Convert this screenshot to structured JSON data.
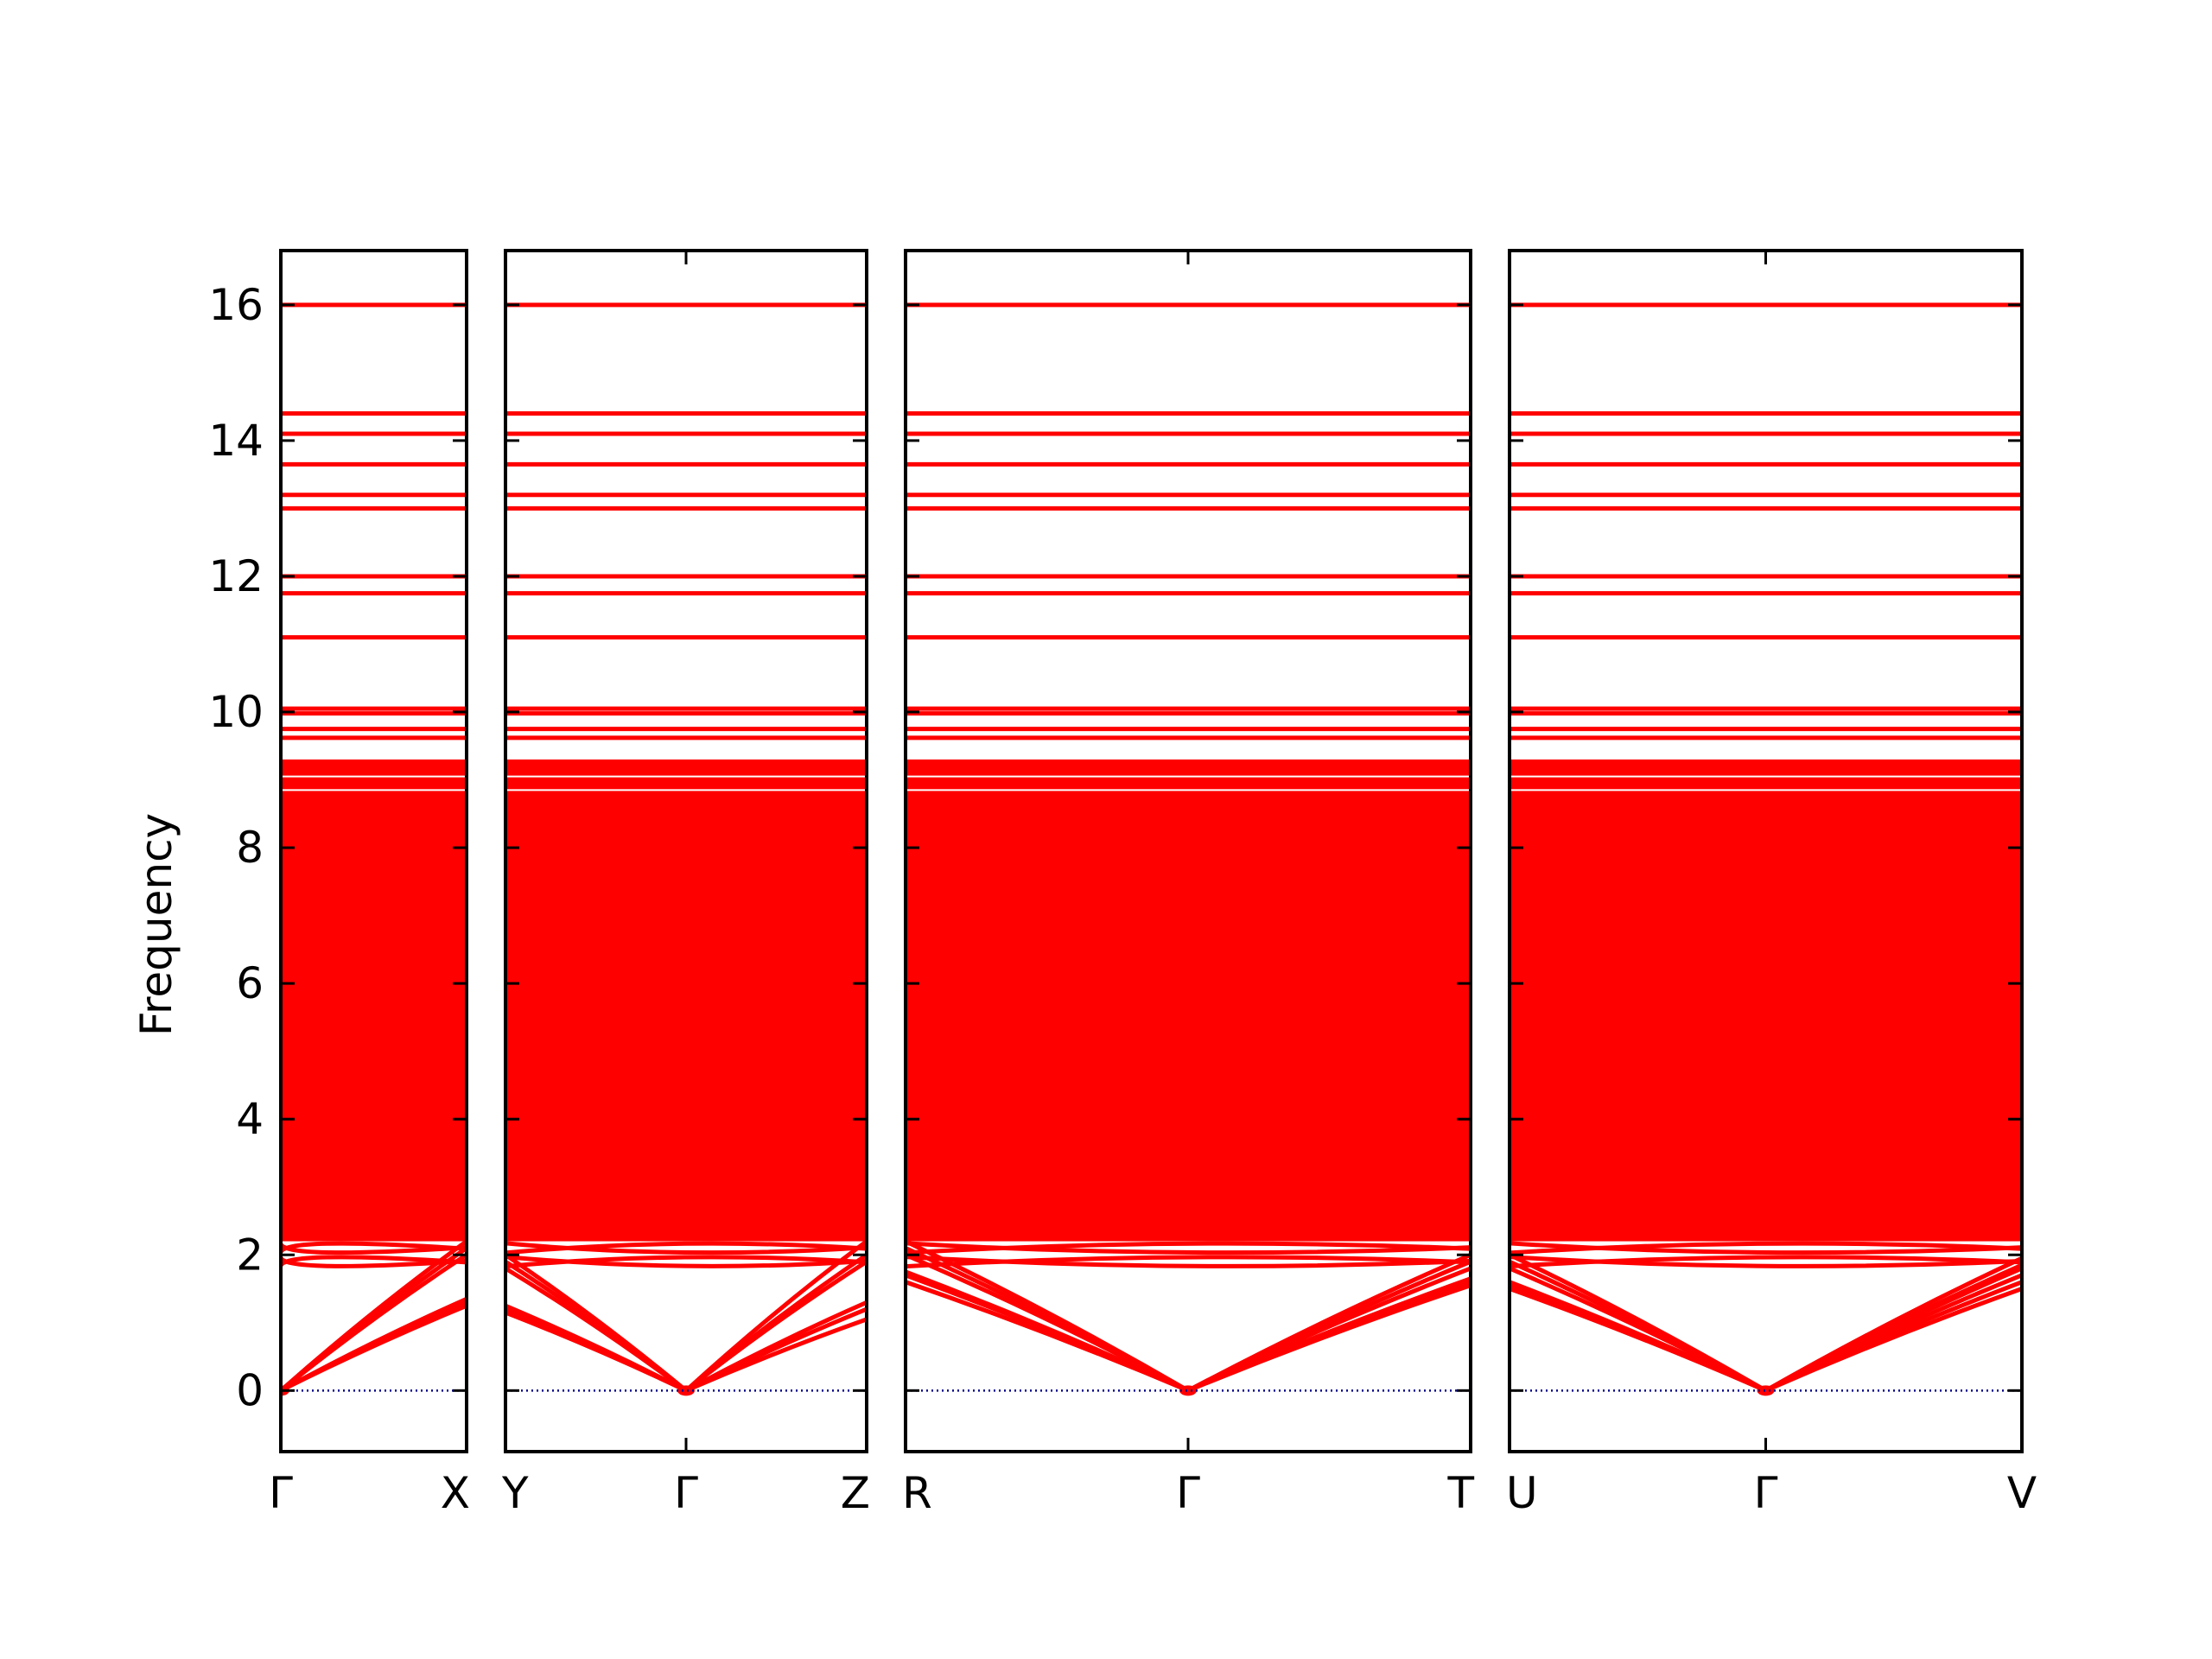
{
  "chart_data": {
    "type": "line",
    "title": "",
    "ylabel": "Frequency",
    "ylim": [
      -0.9,
      16.8
    ],
    "yticks": [
      0,
      2,
      4,
      6,
      8,
      10,
      12,
      14,
      16
    ],
    "ytick_labels": [
      "0",
      "2",
      "4",
      "6",
      "8",
      "10",
      "12",
      "14",
      "16"
    ],
    "zero_line": {
      "y": 0,
      "color": "#00008b",
      "style": "dotted"
    },
    "band_color": "#ff0000",
    "panels": [
      {
        "labels": [
          "Γ",
          "X"
        ],
        "gamma_index": 0,
        "acoustic_end": [
          1.25,
          1.3,
          1.35,
          2.0,
          2.1,
          2.2
        ]
      },
      {
        "labels": [
          "Y",
          "Γ",
          "Z"
        ],
        "gamma_index": 1,
        "acoustic_left": [
          1.15,
          1.2,
          1.25,
          1.8,
          1.9,
          2.0
        ],
        "acoustic_right": [
          1.05,
          1.2,
          1.3,
          1.9,
          2.0,
          2.2
        ]
      },
      {
        "labels": [
          "R",
          "Γ",
          "T"
        ],
        "gamma_index": 1,
        "acoustic_left": [
          1.6,
          1.7,
          1.75,
          2.0,
          2.1,
          2.2
        ],
        "acoustic_right": [
          1.55,
          1.6,
          1.65,
          1.8,
          1.9,
          2.0
        ]
      },
      {
        "labels": [
          "U",
          "Γ",
          "V"
        ],
        "gamma_index": 1,
        "acoustic_left": [
          1.5,
          1.55,
          1.6,
          1.8,
          1.9,
          2.0
        ],
        "acoustic_right": [
          1.5,
          1.6,
          1.7,
          1.8,
          1.85,
          1.95
        ]
      }
    ],
    "flat_bands": [
      16.0,
      14.4,
      14.1,
      13.65,
      13.2,
      13.0,
      12.0,
      11.75,
      11.1,
      10.05,
      9.98,
      9.75,
      9.62
    ],
    "dense_band_range": [
      2.2,
      9.3
    ],
    "low_optical_bands": [
      1.85,
      1.95,
      2.05,
      2.15,
      2.25,
      2.35,
      2.45,
      2.6,
      2.75,
      2.9
    ]
  }
}
